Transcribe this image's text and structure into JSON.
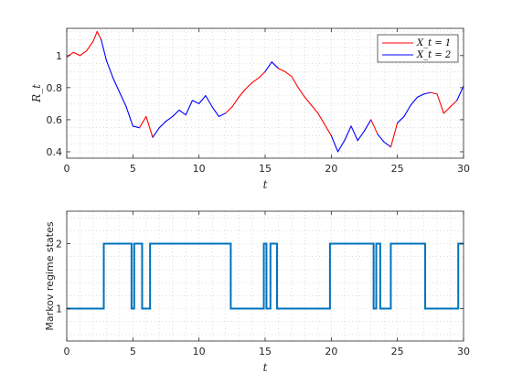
{
  "chart_data": [
    {
      "type": "line",
      "title": "",
      "xlabel": "t",
      "ylabel": "R_t",
      "xlim": [
        0,
        30
      ],
      "ylim": [
        0.36,
        1.17
      ],
      "xticks": [
        "0",
        "5",
        "10",
        "15",
        "20",
        "25",
        "30"
      ],
      "yticks": [
        "0.4",
        "0.6",
        "0.8",
        "1"
      ],
      "grid": "minor-dotted",
      "legend_position": "top-right",
      "colors": {
        "regime1": "#ff0000",
        "regime2": "#0000ff"
      },
      "legend": [
        {
          "label": "X_t = 1",
          "color": "#ff0000"
        },
        {
          "label": "X_t = 2",
          "color": "#0000ff"
        }
      ],
      "x": [
        0,
        0.5,
        1.0,
        1.5,
        2.0,
        2.3,
        2.6,
        3.0,
        3.5,
        4.0,
        4.5,
        5.0,
        5.5,
        6.0,
        6.5,
        7.0,
        7.5,
        8.0,
        8.5,
        9.0,
        9.5,
        10.0,
        10.5,
        11.0,
        11.5,
        12.0,
        12.5,
        13.0,
        13.5,
        14.0,
        14.5,
        15.0,
        15.5,
        16.0,
        16.5,
        17.0,
        17.5,
        18.0,
        18.5,
        19.0,
        19.5,
        20.0,
        20.5,
        21.0,
        21.5,
        22.0,
        22.5,
        23.0,
        23.5,
        24.0,
        24.5,
        25.0,
        25.5,
        26.0,
        26.5,
        27.0,
        27.5,
        28.0,
        28.5,
        29.0,
        29.5,
        30.0
      ],
      "y": [
        0.99,
        1.02,
        1.0,
        1.03,
        1.09,
        1.15,
        1.1,
        0.97,
        0.86,
        0.77,
        0.68,
        0.56,
        0.55,
        0.62,
        0.49,
        0.55,
        0.59,
        0.62,
        0.66,
        0.63,
        0.72,
        0.7,
        0.75,
        0.68,
        0.62,
        0.64,
        0.68,
        0.74,
        0.79,
        0.83,
        0.86,
        0.9,
        0.96,
        0.92,
        0.9,
        0.87,
        0.8,
        0.74,
        0.69,
        0.64,
        0.57,
        0.5,
        0.4,
        0.47,
        0.56,
        0.47,
        0.53,
        0.6,
        0.51,
        0.46,
        0.43,
        0.58,
        0.62,
        0.69,
        0.74,
        0.76,
        0.77,
        0.76,
        0.64,
        0.68,
        0.72,
        0.81
      ],
      "regime_path": [
        1,
        1,
        1,
        1,
        1,
        1,
        2,
        2,
        2,
        2,
        2,
        2,
        1,
        1,
        2,
        2,
        2,
        2,
        2,
        2,
        2,
        2,
        2,
        2,
        2,
        1,
        1,
        1,
        1,
        1,
        1,
        2,
        2,
        1,
        1,
        1,
        1,
        1,
        1,
        1,
        1,
        2,
        2,
        2,
        2,
        2,
        2,
        1,
        2,
        2,
        1,
        2,
        2,
        2,
        2,
        2,
        1,
        1,
        1,
        1,
        2,
        2
      ]
    },
    {
      "type": "line",
      "title": "",
      "xlabel": "t",
      "ylabel": "Markov regime states",
      "xlim": [
        0,
        30
      ],
      "ylim": [
        0.5,
        2.5
      ],
      "xticks": [
        "0",
        "5",
        "10",
        "15",
        "20",
        "25",
        "30"
      ],
      "yticks": [
        "1",
        "2"
      ],
      "grid": "minor-dotted",
      "color": "#0072bd",
      "step_x": [
        0,
        2.8,
        4.9,
        5.1,
        5.2,
        5.6,
        5.7,
        6.3,
        12.4,
        14.9,
        15.1,
        15.4,
        15.9,
        19.9,
        23.2,
        23.4,
        23.5,
        23.7,
        24.5,
        27.1,
        28.8,
        29.6,
        30.0
      ],
      "step_y": [
        1,
        2,
        1,
        2,
        2,
        2,
        1,
        2,
        1,
        2,
        1,
        2,
        1,
        2,
        1,
        2,
        2,
        1,
        2,
        1,
        1,
        2,
        2
      ]
    }
  ]
}
